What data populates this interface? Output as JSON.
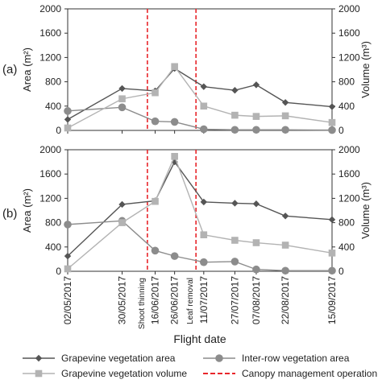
{
  "figure": {
    "xlabel": "Flight date",
    "dates": [
      "02/05/2017",
      "30/05/2017",
      "16/06/2017",
      "26/06/2017",
      "11/07/2017",
      "27/07/2017",
      "07/08/2017",
      "22/08/2017",
      "15/09/2017"
    ],
    "canopy_annotations": [
      "Shoot thinning",
      "Leaf removal"
    ],
    "legend": {
      "grapevine_area": "Grapevine vegetation area",
      "interrow_area": "Inter-row vegetation area",
      "grapevine_volume": "Grapevine vegetation volume",
      "canopy_op": "Canopy management operation"
    }
  },
  "colors": {
    "grapevine_area": "#555555",
    "interrow_area": "#8c8c8c",
    "grapevine_volume": "#b3b3b3",
    "canopy_op": "#e8262b",
    "axis": "#333333"
  },
  "chart_data": [
    {
      "panel_label": "(a)",
      "type": "line",
      "x": [
        "2017-05-02",
        "2017-05-30",
        "2017-06-16",
        "2017-06-26",
        "2017-07-11",
        "2017-07-27",
        "2017-08-07",
        "2017-08-22",
        "2017-09-15"
      ],
      "canopy_operations": [
        "2017-06-12",
        "2017-07-07"
      ],
      "ylabel": "Area (m²)",
      "y2label": "Volume (m³)",
      "ylim": [
        0,
        2000
      ],
      "y2lim": [
        0,
        2000
      ],
      "yticks": [
        "0",
        "400",
        "800",
        "1200",
        "1600",
        "2000"
      ],
      "y2ticks": [
        "0",
        "400",
        "800",
        "1200",
        "1600",
        "2000"
      ],
      "series": [
        {
          "name": "Grapevine vegetation area",
          "axis": "left",
          "marker": "diamond",
          "values": [
            180,
            690,
            650,
            1020,
            720,
            660,
            750,
            460,
            390
          ]
        },
        {
          "name": "Inter-row vegetation area",
          "axis": "left",
          "marker": "circle",
          "values": [
            320,
            380,
            150,
            140,
            20,
            10,
            10,
            10,
            5
          ]
        },
        {
          "name": "Grapevine vegetation volume",
          "axis": "right",
          "marker": "square",
          "values": [
            40,
            520,
            620,
            1050,
            400,
            250,
            230,
            240,
            130
          ]
        }
      ]
    },
    {
      "panel_label": "(b)",
      "type": "line",
      "x": [
        "2017-05-02",
        "2017-05-30",
        "2017-06-16",
        "2017-06-26",
        "2017-07-11",
        "2017-07-27",
        "2017-08-07",
        "2017-08-22",
        "2017-09-15"
      ],
      "canopy_operations": [
        "2017-06-12",
        "2017-07-07"
      ],
      "ylabel": "Area (m²)",
      "y2label": "Volume (m³)",
      "ylim": [
        0,
        2000
      ],
      "y2lim": [
        0,
        2000
      ],
      "yticks": [
        "0",
        "400",
        "800",
        "1200",
        "1600",
        "2000"
      ],
      "y2ticks": [
        "0",
        "400",
        "800",
        "1200",
        "1600",
        "2000"
      ],
      "series": [
        {
          "name": "Grapevine vegetation area",
          "axis": "left",
          "marker": "diamond",
          "values": [
            250,
            1100,
            1160,
            1800,
            1140,
            1120,
            1110,
            910,
            850
          ]
        },
        {
          "name": "Inter-row vegetation area",
          "axis": "left",
          "marker": "circle",
          "values": [
            770,
            830,
            340,
            250,
            150,
            160,
            30,
            10,
            10
          ]
        },
        {
          "name": "Grapevine vegetation volume",
          "axis": "right",
          "marker": "square",
          "values": [
            40,
            800,
            1150,
            1890,
            600,
            510,
            470,
            430,
            300
          ]
        }
      ]
    }
  ]
}
